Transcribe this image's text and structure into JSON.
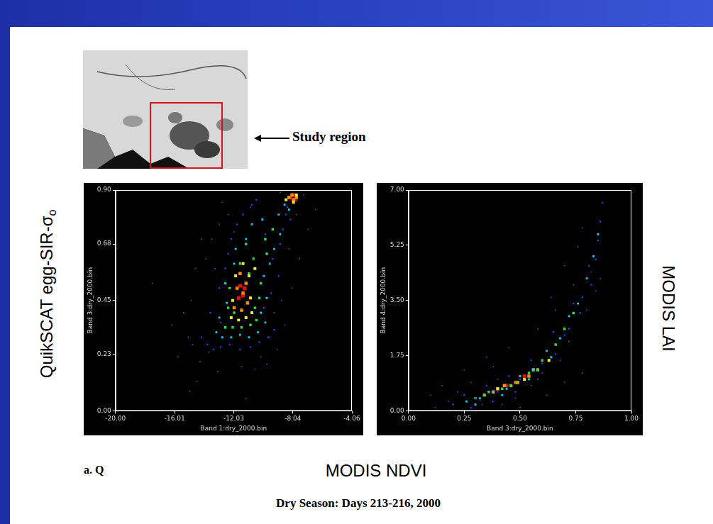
{
  "slide": {
    "inset_label": "Study region",
    "left_title": {
      "text": "QuikSCAT egg-SIR-σ",
      "subscript": "o"
    },
    "right_title": "MODIS LAI",
    "bottom_title": "MODIS NDVI",
    "panel_tag": "a. Q",
    "caption": "Dry Season: Days 213-216, 2000"
  },
  "chart_data": [
    {
      "type": "scatter",
      "x_label": "Band 1:dry_2000.bin",
      "y_label": "Band 3:dry_2000.bin",
      "xlim": [
        -20,
        -4.06
      ],
      "ylim": [
        0,
        0.9
      ],
      "xticks": [
        {
          "value": -20,
          "label": "-20.00"
        },
        -16.01,
        -12.03,
        -8.04,
        -4.06
      ],
      "yticks": [
        {
          "value": 0,
          "label": "0.00"
        },
        0.23,
        0.45,
        0.68,
        {
          "value": 0.9,
          "label": "0.90"
        }
      ],
      "grid": false,
      "marker": "square",
      "series": [
        {
          "color": "#5a2d9c",
          "x": [
            -17.5,
            -16.2,
            -15.8,
            -15.1,
            -14.9,
            -14.6,
            -14.3,
            -13.9,
            -13.5,
            -13.0,
            -12.4,
            -11.5,
            -10.6,
            -9.8,
            -9.1,
            -8.6,
            -8.1,
            -7.6,
            -7.0,
            -6.5,
            -15.4,
            -14.8,
            -14.2,
            -13.7,
            -13.1,
            -12.8,
            -9.3,
            -8.8,
            -8.3,
            -7.8,
            -7.3,
            -14.5,
            -10.2,
            -9.6,
            -13.3,
            -12.0,
            -10.9,
            -8.9,
            -15.0,
            -11.2
          ],
          "values": [
            0.52,
            0.35,
            0.22,
            0.3,
            0.45,
            0.58,
            0.2,
            0.62,
            0.7,
            0.76,
            0.8,
            0.18,
            0.17,
            0.19,
            0.25,
            0.35,
            0.5,
            0.62,
            0.74,
            0.82,
            0.4,
            0.27,
            0.7,
            0.24,
            0.16,
            0.85,
            0.4,
            0.45,
            0.66,
            0.8,
            0.88,
            0.12,
            0.22,
            0.3,
            0.58,
            0.73,
            0.83,
            0.89,
            0.08,
            0.05
          ]
        },
        {
          "color": "#2040ff",
          "x": [
            -14.2,
            -13.8,
            -13.4,
            -12.9,
            -12.3,
            -11.6,
            -10.9,
            -10.3,
            -9.7,
            -9.3,
            -13.6,
            -13.0,
            -12.6,
            -10.0,
            -9.5,
            -9.0,
            -12.9,
            -12.4,
            -9.4,
            -8.9,
            -12.2,
            -11.8,
            -8.7,
            -8.5,
            -11.4,
            -10.8,
            -8.4,
            -8.2,
            -10.5,
            -9.9
          ],
          "values": [
            0.3,
            0.27,
            0.25,
            0.26,
            0.27,
            0.25,
            0.26,
            0.28,
            0.3,
            0.33,
            0.4,
            0.5,
            0.58,
            0.42,
            0.48,
            0.55,
            0.36,
            0.64,
            0.62,
            0.68,
            0.7,
            0.76,
            0.74,
            0.8,
            0.8,
            0.84,
            0.83,
            0.78,
            0.86,
            0.72
          ]
        },
        {
          "color": "#00d0ff",
          "x": [
            -13.2,
            -12.8,
            -12.2,
            -11.6,
            -11.0,
            -10.4,
            -9.9,
            -13.0,
            -12.5,
            -10.2,
            -9.8,
            -12.6,
            -12.0,
            -10.0,
            -9.6,
            -11.9,
            -11.2,
            -9.3,
            -8.9,
            -10.8,
            -10.1,
            -9.0,
            -8.6,
            -8.3
          ],
          "values": [
            0.32,
            0.3,
            0.3,
            0.31,
            0.3,
            0.32,
            0.36,
            0.38,
            0.44,
            0.4,
            0.46,
            0.52,
            0.6,
            0.55,
            0.6,
            0.66,
            0.7,
            0.66,
            0.72,
            0.76,
            0.78,
            0.8,
            0.84,
            0.82
          ]
        },
        {
          "color": "#30e040",
          "x": [
            -12.6,
            -12.1,
            -11.5,
            -10.9,
            -10.5,
            -12.4,
            -12.0,
            -10.6,
            -10.3,
            -12.3,
            -11.0,
            -10.2,
            -11.6,
            -10.7,
            -9.8,
            -11.2,
            -9.9,
            -9.4
          ],
          "values": [
            0.34,
            0.34,
            0.34,
            0.35,
            0.37,
            0.42,
            0.4,
            0.42,
            0.46,
            0.5,
            0.56,
            0.52,
            0.6,
            0.62,
            0.64,
            0.68,
            0.7,
            0.74
          ]
        },
        {
          "color": "#f0f020",
          "x": [
            -12.2,
            -11.7,
            -11.2,
            -10.8,
            -12.1,
            -10.9,
            -11.9,
            -11.0,
            -11.4,
            -10.6,
            -8.5,
            -8.0,
            -7.8
          ],
          "values": [
            0.38,
            0.37,
            0.38,
            0.4,
            0.45,
            0.46,
            0.55,
            0.55,
            0.6,
            0.58,
            0.86,
            0.85,
            0.88
          ]
        },
        {
          "color": "#ff8c00",
          "x": [
            -12.0,
            -11.5,
            -11.1,
            -11.8,
            -11.4,
            -11.2,
            -11.6,
            -8.3,
            -8.0,
            -8.1,
            -7.8
          ],
          "values": [
            0.42,
            0.41,
            0.44,
            0.5,
            0.48,
            0.52,
            0.56,
            0.87,
            0.86,
            0.88,
            0.87
          ]
        },
        {
          "color": "#e01010",
          "x": [
            -11.7,
            -11.4,
            -11.6,
            -11.3,
            -8.2,
            -8.0,
            -7.9
          ],
          "values": [
            0.46,
            0.47,
            0.51,
            0.5,
            0.87,
            0.88,
            0.86
          ]
        }
      ]
    },
    {
      "type": "scatter",
      "x_label": "Band 3:dry_2000.bin",
      "y_label": "Band 4:dry_2000.bin",
      "xlim": [
        0,
        1
      ],
      "ylim": [
        0,
        7
      ],
      "xticks": [
        {
          "value": 0,
          "label": "0.00"
        },
        0.25,
        {
          "value": 0.5,
          "label": "0.50"
        },
        0.75,
        {
          "value": 1,
          "label": "1.00"
        }
      ],
      "yticks": [
        {
          "value": 0,
          "label": "0.00"
        },
        1.75,
        {
          "value": 3.5,
          "label": "3.50"
        },
        5.25,
        {
          "value": 7,
          "label": "7.00"
        }
      ],
      "grid": false,
      "marker": "square",
      "series": [
        {
          "color": "#5a2d9c",
          "x": [
            0.12,
            0.18,
            0.22,
            0.28,
            0.33,
            0.4,
            0.48,
            0.55,
            0.62,
            0.7,
            0.78,
            0.15,
            0.25,
            0.35,
            0.45,
            0.58,
            0.66,
            0.74,
            0.82,
            0.2,
            0.3,
            0.42,
            0.6,
            0.68,
            0.72,
            0.76,
            0.8,
            0.84,
            0.86,
            0.78,
            0.7,
            0.64,
            0.38,
            0.5,
            0.26,
            0.1
          ],
          "values": [
            0.1,
            0.3,
            0.6,
            0.9,
            0.2,
            1.0,
            0.4,
            0.8,
            0.5,
            0.9,
            1.2,
            0.8,
            1.3,
            1.7,
            2.0,
            2.6,
            3.2,
            4.0,
            4.4,
            0.0,
            0.0,
            0.2,
            1.2,
            1.6,
            2.2,
            5.2,
            3.2,
            3.8,
            4.2,
            5.8,
            4.6,
            3.6,
            1.4,
            0.1,
            0.0,
            0.5
          ]
        },
        {
          "color": "#2040ff",
          "x": [
            0.2,
            0.25,
            0.3,
            0.35,
            0.4,
            0.45,
            0.5,
            0.55,
            0.6,
            0.65,
            0.7,
            0.74,
            0.78,
            0.81,
            0.84,
            0.86,
            0.87,
            0.28,
            0.38,
            0.48,
            0.58,
            0.66,
            0.72,
            0.77,
            0.82,
            0.85
          ],
          "values": [
            0.2,
            0.5,
            0.4,
            0.8,
            0.6,
            1.1,
            1.0,
            1.6,
            1.5,
            2.5,
            2.4,
            3.4,
            3.6,
            4.6,
            4.8,
            6.0,
            6.6,
            0.1,
            0.3,
            0.6,
            1.0,
            1.8,
            2.6,
            3.1,
            4.0,
            5.4
          ]
        },
        {
          "color": "#00d0ff",
          "x": [
            0.26,
            0.32,
            0.38,
            0.44,
            0.5,
            0.56,
            0.62,
            0.68,
            0.72,
            0.76,
            0.8,
            0.83,
            0.85,
            0.3,
            0.42,
            0.54,
            0.64
          ],
          "values": [
            0.3,
            0.4,
            0.6,
            0.7,
            1.1,
            1.3,
            1.9,
            2.3,
            3.0,
            3.4,
            4.2,
            4.9,
            5.6,
            0.2,
            0.5,
            1.0,
            1.7
          ]
        },
        {
          "color": "#30e040",
          "x": [
            0.3,
            0.36,
            0.42,
            0.48,
            0.54,
            0.6,
            0.66,
            0.7,
            0.74,
            0.34,
            0.46,
            0.58
          ],
          "values": [
            0.4,
            0.6,
            0.7,
            0.9,
            1.2,
            1.6,
            2.1,
            2.6,
            3.1,
            0.5,
            0.8,
            1.3
          ]
        },
        {
          "color": "#f0f020",
          "x": [
            0.34,
            0.4,
            0.46,
            0.52,
            0.58,
            0.63
          ],
          "values": [
            0.5,
            0.7,
            0.8,
            1.0,
            1.3,
            1.6
          ]
        },
        {
          "color": "#ff8c00",
          "x": [
            0.38,
            0.43,
            0.49,
            0.54,
            0.56
          ],
          "values": [
            0.6,
            0.8,
            0.9,
            1.1,
            1.3
          ]
        },
        {
          "color": "#e01010",
          "x": [
            0.4,
            0.44,
            0.48,
            0.52
          ],
          "values": [
            0.7,
            0.8,
            0.9,
            1.1
          ]
        }
      ]
    }
  ]
}
